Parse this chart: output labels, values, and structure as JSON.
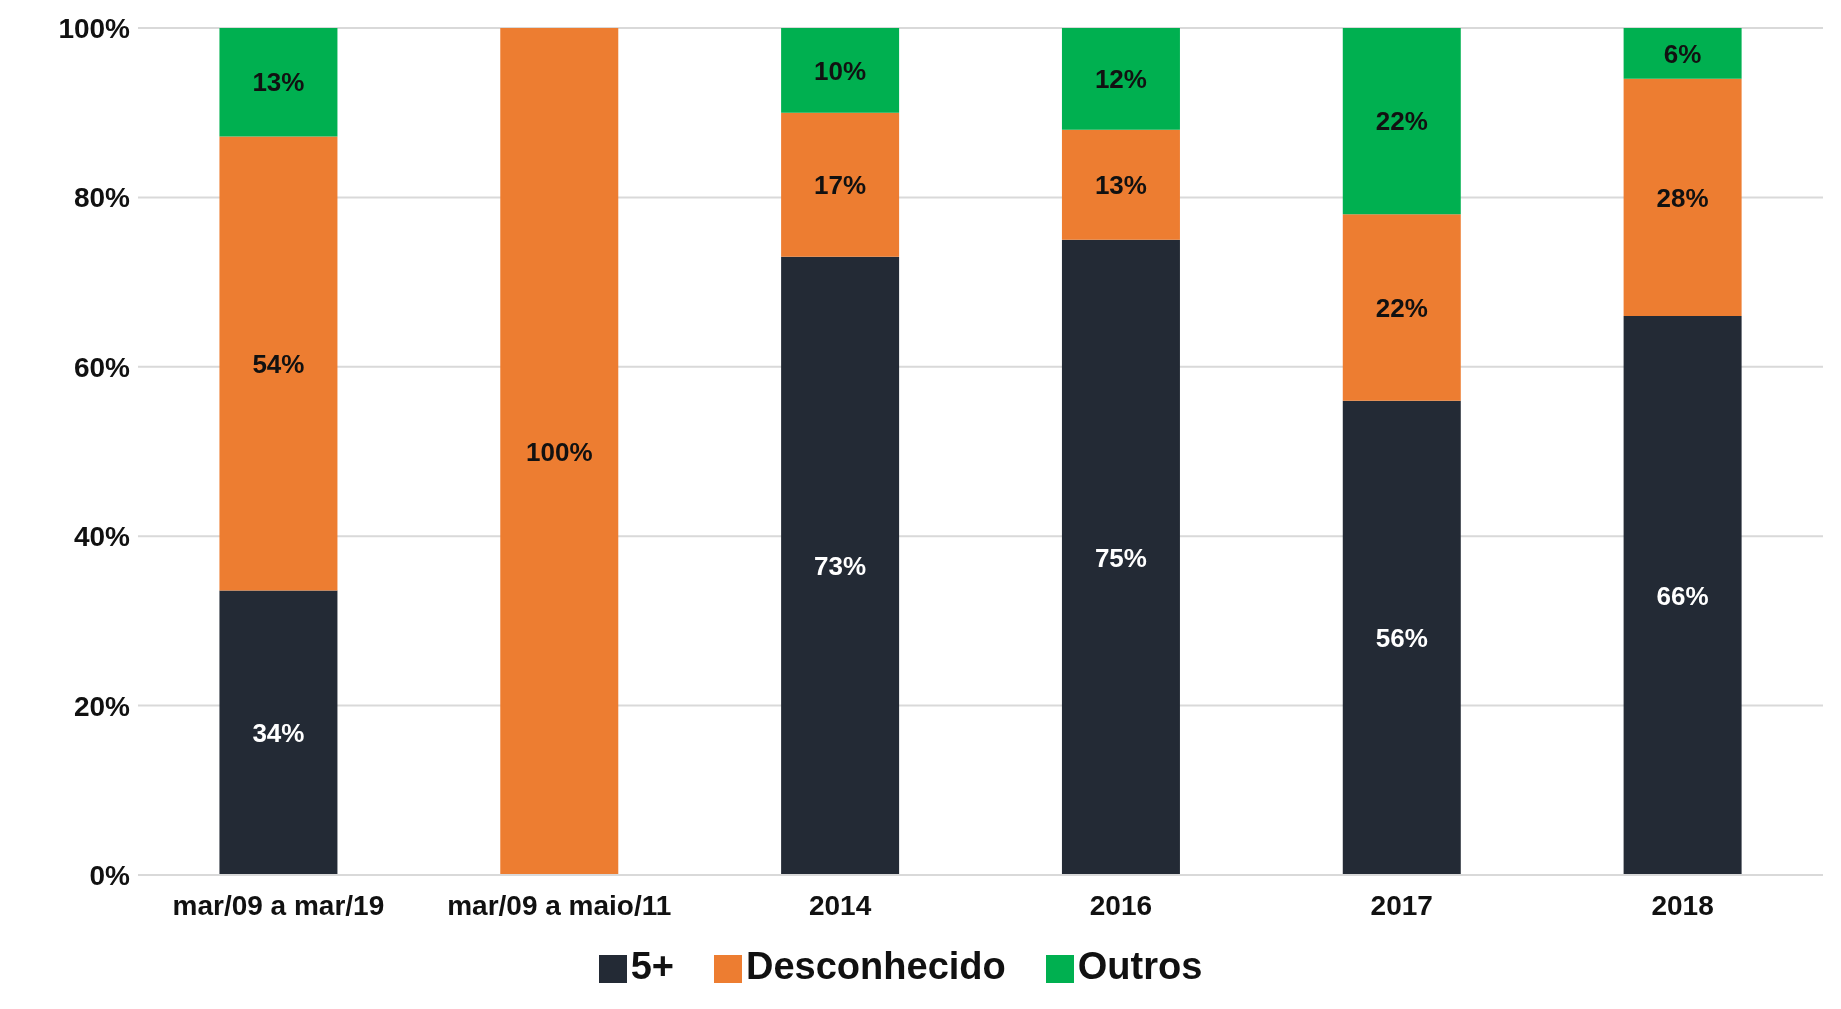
{
  "chart_data": {
    "type": "bar",
    "stacked": true,
    "categories": [
      "mar/09 a mar/19",
      "mar/09 a maio/11",
      "2014",
      "2016",
      "2017",
      "2018"
    ],
    "series": [
      {
        "name": "5+",
        "color": "#232a35",
        "values": [
          33.6,
          0,
          73,
          75,
          56,
          66
        ],
        "value_labels": [
          "34%",
          null,
          "73%",
          "75%",
          "56%",
          "66%"
        ]
      },
      {
        "name": "Desconhecido",
        "color": "#ed7d31",
        "values": [
          53.6,
          100,
          17,
          13,
          22,
          28
        ],
        "value_labels": [
          "54%",
          "100%",
          "17%",
          "13%",
          "22%",
          "28%"
        ]
      },
      {
        "name": "Outros",
        "color": "#00b050",
        "values": [
          12.8,
          0,
          10,
          12,
          22,
          6
        ],
        "value_labels": [
          "13%",
          null,
          "10%",
          "12%",
          "22%",
          "6%"
        ]
      }
    ],
    "ylim": [
      0,
      100
    ],
    "yticks": [
      {
        "value": 0,
        "label": "0%"
      },
      {
        "value": 20,
        "label": "20%"
      },
      {
        "value": 40,
        "label": "40%"
      },
      {
        "value": 60,
        "label": "60%"
      },
      {
        "value": 80,
        "label": "80%"
      },
      {
        "value": 100,
        "label": "100%"
      }
    ],
    "grid": "y",
    "legend": "bottom"
  }
}
